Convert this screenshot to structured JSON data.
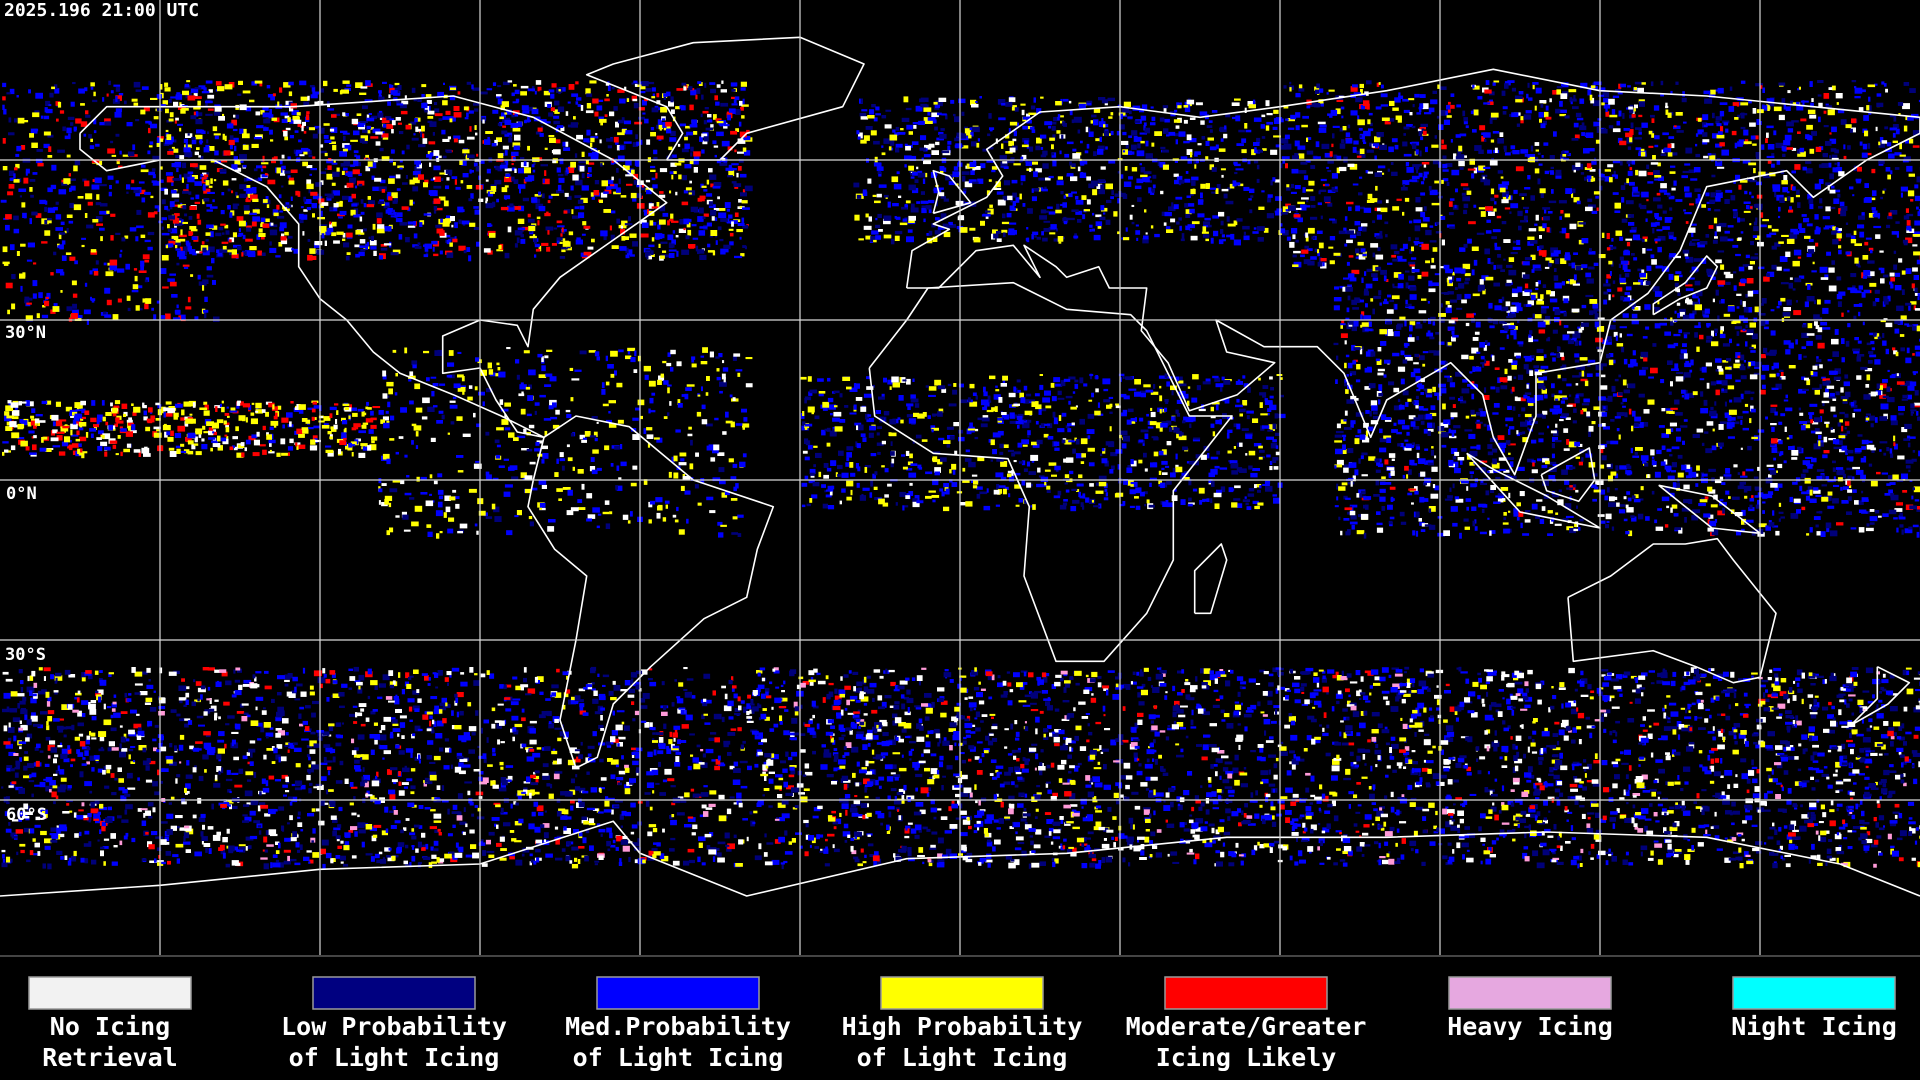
{
  "header": {
    "timestamp": "2025.196 21:00 UTC"
  },
  "map": {
    "latitude_labels": [
      "30°N",
      "0°N",
      "30°S",
      "60°S"
    ]
  },
  "legend": [
    {
      "lines": [
        "No Icing",
        "Retrieval"
      ],
      "color": "#f2f2f2"
    },
    {
      "lines": [
        "Low Probability",
        "of Light Icing"
      ],
      "color": "#000080"
    },
    {
      "lines": [
        "Med.Probability",
        "of Light Icing"
      ],
      "color": "#0000ff"
    },
    {
      "lines": [
        "High Probability",
        "of Light Icing"
      ],
      "color": "#ffff00"
    },
    {
      "lines": [
        "Moderate/Greater",
        "Icing Likely"
      ],
      "color": "#ff0000"
    },
    {
      "lines": [
        "Heavy Icing"
      ],
      "color": "#e6a8e0"
    },
    {
      "lines": [
        "Night Icing"
      ],
      "color": "#00ffff"
    }
  ]
}
